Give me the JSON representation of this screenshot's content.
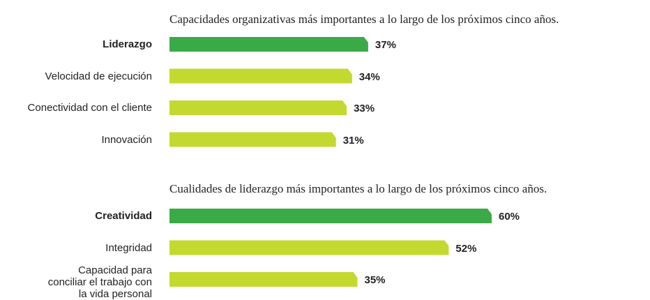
{
  "chart_data": [
    {
      "type": "bar",
      "orientation": "horizontal",
      "title": "Capacidades organizativas más importantes a lo largo de los próximos cinco años.",
      "categories": [
        "Liderazgo",
        "Velocidad de ejecución",
        "Conectividad con el cliente",
        "Innovación"
      ],
      "values": [
        37,
        34,
        33,
        31
      ],
      "value_labels": [
        "37%",
        "34%",
        "33%",
        "31%"
      ],
      "colors": [
        "#3aaa47",
        "#c3d92f",
        "#c3d92f",
        "#c3d92f"
      ],
      "highlight": 0
    },
    {
      "type": "bar",
      "orientation": "horizontal",
      "title": "Cualidades de liderazgo más importantes a lo largo de los próximos cinco años.",
      "categories": [
        "Creatividad",
        "Integridad",
        "Capacidad para\nconciliar el trabajo con\nla vida personal"
      ],
      "values": [
        60,
        52,
        35
      ],
      "value_labels": [
        "60%",
        "52%",
        "35%"
      ],
      "colors": [
        "#3aaa47",
        "#c3d92f",
        "#c3d92f"
      ],
      "highlight": 0
    }
  ]
}
